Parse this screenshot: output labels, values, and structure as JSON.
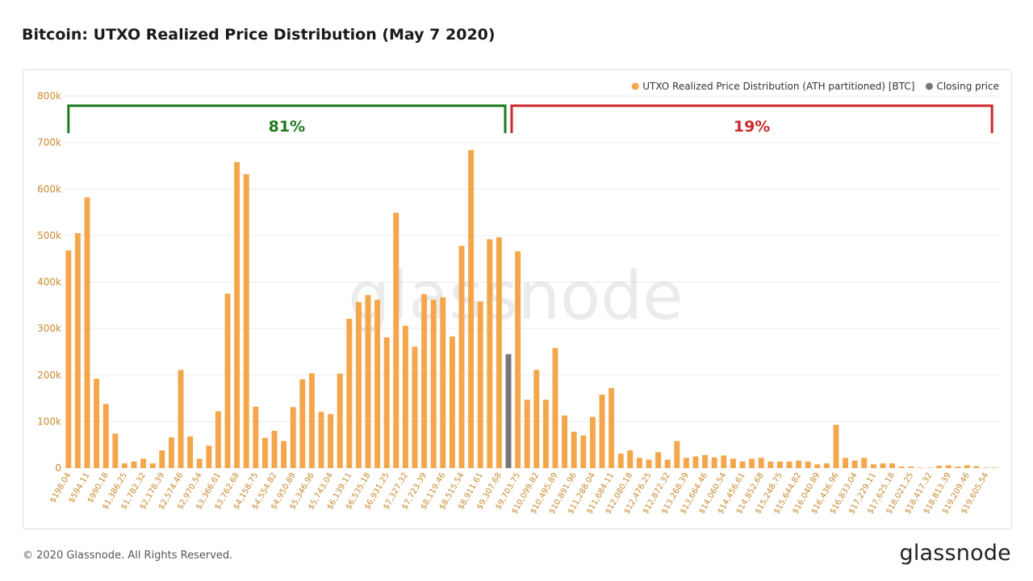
{
  "page": {
    "title": "Bitcoin: UTXO Realized Price Distribution (May 7 2020)",
    "copyright": "© 2020 Glassnode. All Rights Reserved.",
    "brand": "glassnode",
    "watermark": "glassnode"
  },
  "chart_data": {
    "type": "bar",
    "title": "Bitcoin: UTXO Realized Price Distribution (May 7 2020)",
    "legend_position": "top-right",
    "legend": [
      {
        "name": "UTXO Realized Price Distribution (ATH partitioned) [BTC]",
        "color": "#F4A64B"
      },
      {
        "name": "Closing price",
        "color": "#777777"
      }
    ],
    "ylim": [
      0,
      800000
    ],
    "y_ticks": [
      0,
      100000,
      200000,
      300000,
      400000,
      500000,
      600000,
      700000,
      800000
    ],
    "y_tick_labels": [
      "0",
      "100k",
      "200k",
      "300k",
      "400k",
      "500k",
      "600k",
      "700k",
      "800k"
    ],
    "grid": true,
    "x_tick_labels": [
      "$198.04",
      "$594.11",
      "$990.18",
      "$1,386.25",
      "$1,782.32",
      "$2,178.39",
      "$2,574.46",
      "$2,970.54",
      "$3,366.61",
      "$3,762.68",
      "$4,158.75",
      "$4,554.82",
      "$4,950.89",
      "$5,346.96",
      "$5,743.04",
      "$6,139.11",
      "$6,535.18",
      "$6,931.25",
      "$7,327.32",
      "$7,723.39",
      "$8,119.46",
      "$8,515.54",
      "$8,911.61",
      "$9,307.68",
      "$9,703.75",
      "$10,099.82",
      "$10,495.89",
      "$10,891.96",
      "$11,288.04",
      "$11,684.11",
      "$12,080.18",
      "$12,476.25",
      "$12,872.32",
      "$13,268.39",
      "$13,664.46",
      "$14,060.54",
      "$14,456.61",
      "$14,852.68",
      "$15,248.75",
      "$15,644.82",
      "$16,040.89",
      "$16,436.96",
      "$16,833.04",
      "$17,229.11",
      "$17,625.18",
      "$18,021.25",
      "$18,417.32",
      "$18,813.39",
      "$19,209.46",
      "$19,605.54"
    ],
    "values": [
      468000,
      505000,
      582000,
      192000,
      138000,
      74000,
      10000,
      14000,
      20000,
      10000,
      38000,
      66000,
      211000,
      68000,
      20000,
      48000,
      122000,
      375000,
      658000,
      632000,
      132000,
      65000,
      80000,
      58000,
      131000,
      191000,
      204000,
      121000,
      116000,
      203000,
      321000,
      357000,
      372000,
      362000,
      281000,
      549000,
      306000,
      261000,
      374000,
      362000,
      367000,
      283000,
      478000,
      684000,
      358000,
      492000,
      496000,
      245000,
      466000,
      147000,
      211000,
      147000,
      258000,
      113000,
      78000,
      70000,
      110000,
      158000,
      172000,
      31000,
      38000,
      22000,
      18000,
      34000,
      18000,
      58000,
      22000,
      25000,
      28000,
      23000,
      27000,
      20000,
      14000,
      20000,
      22000,
      14000,
      14000,
      14000,
      16000,
      14000,
      8000,
      10000,
      93000,
      22000,
      16000,
      22000,
      8000,
      10000,
      10000,
      3000,
      3000,
      1000,
      1000,
      5000,
      6000,
      3000,
      6000,
      4000,
      1000,
      1000
    ],
    "closing_price_index": 47,
    "brackets": [
      {
        "label": "81%",
        "color": "#1F7A1F"
      },
      {
        "label": "19%",
        "color": "#CC2A2A"
      }
    ],
    "colors": {
      "bar": "#F4A64B",
      "closing": "#777777",
      "axis_text": "#C88A2E",
      "grid": "#ececec"
    }
  }
}
